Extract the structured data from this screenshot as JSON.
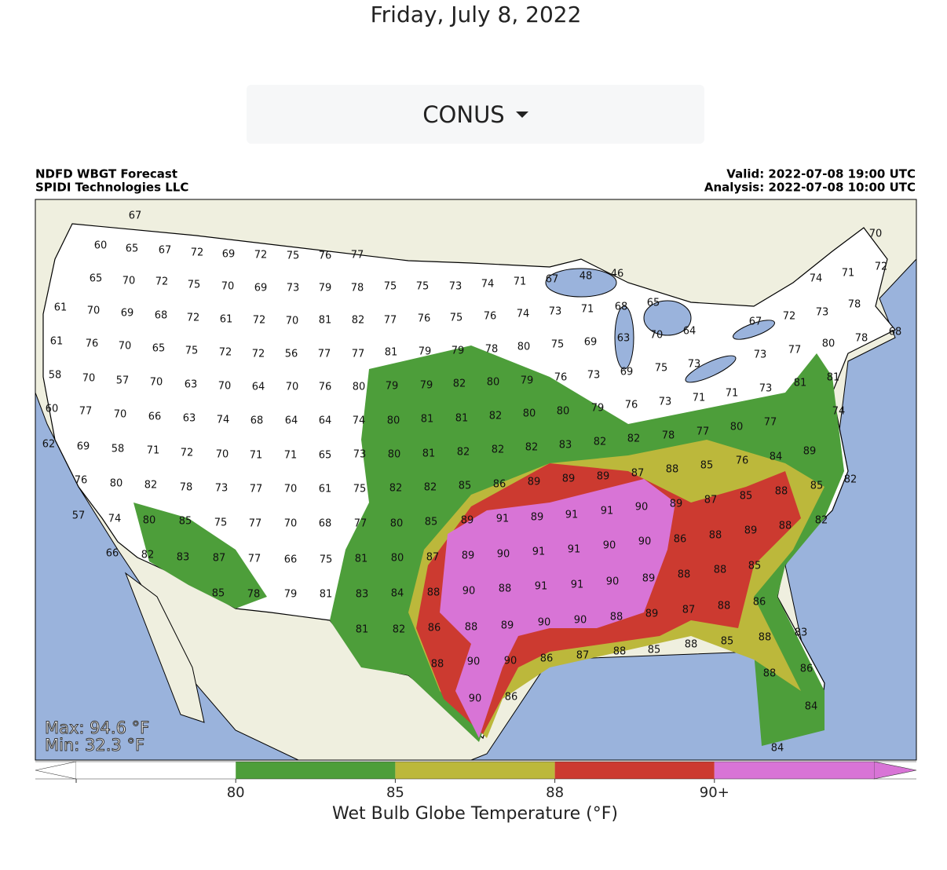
{
  "header": {
    "date": "Friday, July 8, 2022",
    "region_menu": "CONUS"
  },
  "map": {
    "title_left": [
      "NDFD WBGT Forecast",
      "SPIDI Technologies LLC"
    ],
    "title_right": [
      "Valid: 2022-07-08 19:00 UTC",
      "Analysis: 2022-07-08 10:00 UTC"
    ],
    "max_text": "Max: 94.6 °F",
    "min_text": "Min: 32.3 °F",
    "station_values": [
      67,
      60,
      65,
      67,
      72,
      69,
      72,
      75,
      76,
      77,
      65,
      70,
      72,
      75,
      70,
      69,
      73,
      79,
      78,
      75,
      75,
      73,
      74,
      71,
      67,
      48,
      46,
      74,
      71,
      72,
      70,
      61,
      70,
      69,
      68,
      72,
      61,
      72,
      70,
      81,
      82,
      77,
      76,
      75,
      76,
      74,
      73,
      71,
      68,
      65,
      72,
      67,
      73,
      78,
      61,
      76,
      70,
      65,
      75,
      72,
      72,
      56,
      77,
      77,
      81,
      79,
      79,
      78,
      80,
      75,
      69,
      63,
      70,
      64,
      73,
      77,
      80,
      78,
      68,
      58,
      70,
      57,
      70,
      63,
      70,
      64,
      70,
      76,
      80,
      79,
      79,
      82,
      80,
      79,
      76,
      73,
      69,
      75,
      73,
      71,
      73,
      81,
      81,
      60,
      77,
      70,
      66,
      63,
      74,
      68,
      64,
      64,
      74,
      80,
      81,
      81,
      82,
      80,
      80,
      79,
      76,
      73,
      71,
      77,
      80,
      77,
      74,
      62,
      69,
      58,
      71,
      72,
      70,
      71,
      71,
      65,
      73,
      80,
      81,
      82,
      82,
      82,
      83,
      82,
      82,
      78,
      84,
      89,
      76,
      80,
      82,
      78,
      73,
      77,
      70,
      61,
      75,
      82,
      82,
      85,
      86,
      89,
      89,
      89,
      87,
      88,
      85,
      76,
      88,
      85,
      82,
      85,
      57,
      74,
      80,
      85,
      75,
      77,
      70,
      68,
      77,
      80,
      85,
      89,
      91,
      89,
      91,
      91,
      90,
      89,
      87,
      89,
      88,
      82,
      66,
      82,
      83,
      87,
      77,
      66,
      75,
      81,
      80,
      87,
      89,
      90,
      91,
      91,
      90,
      90,
      86,
      88,
      85,
      88,
      85,
      78,
      79,
      81,
      83,
      84,
      88,
      90,
      88,
      91,
      91,
      90,
      89,
      88,
      86,
      88,
      87,
      89,
      81,
      82,
      86,
      88,
      89,
      90,
      90,
      88,
      88,
      85,
      83,
      88,
      85,
      88,
      87,
      86,
      90,
      90,
      88,
      86,
      88,
      90,
      86,
      84,
      84
    ]
  },
  "colorbar": {
    "label": "Wet Bulb Globe Temperature (°F)",
    "colors": [
      "#ffffff",
      "#4d9e3a",
      "#bcb83b",
      "#cc3a30",
      "#d874d6"
    ],
    "ticks": [
      80,
      85,
      88,
      {
        "value": 90,
        "label": "90+"
      }
    ]
  }
}
